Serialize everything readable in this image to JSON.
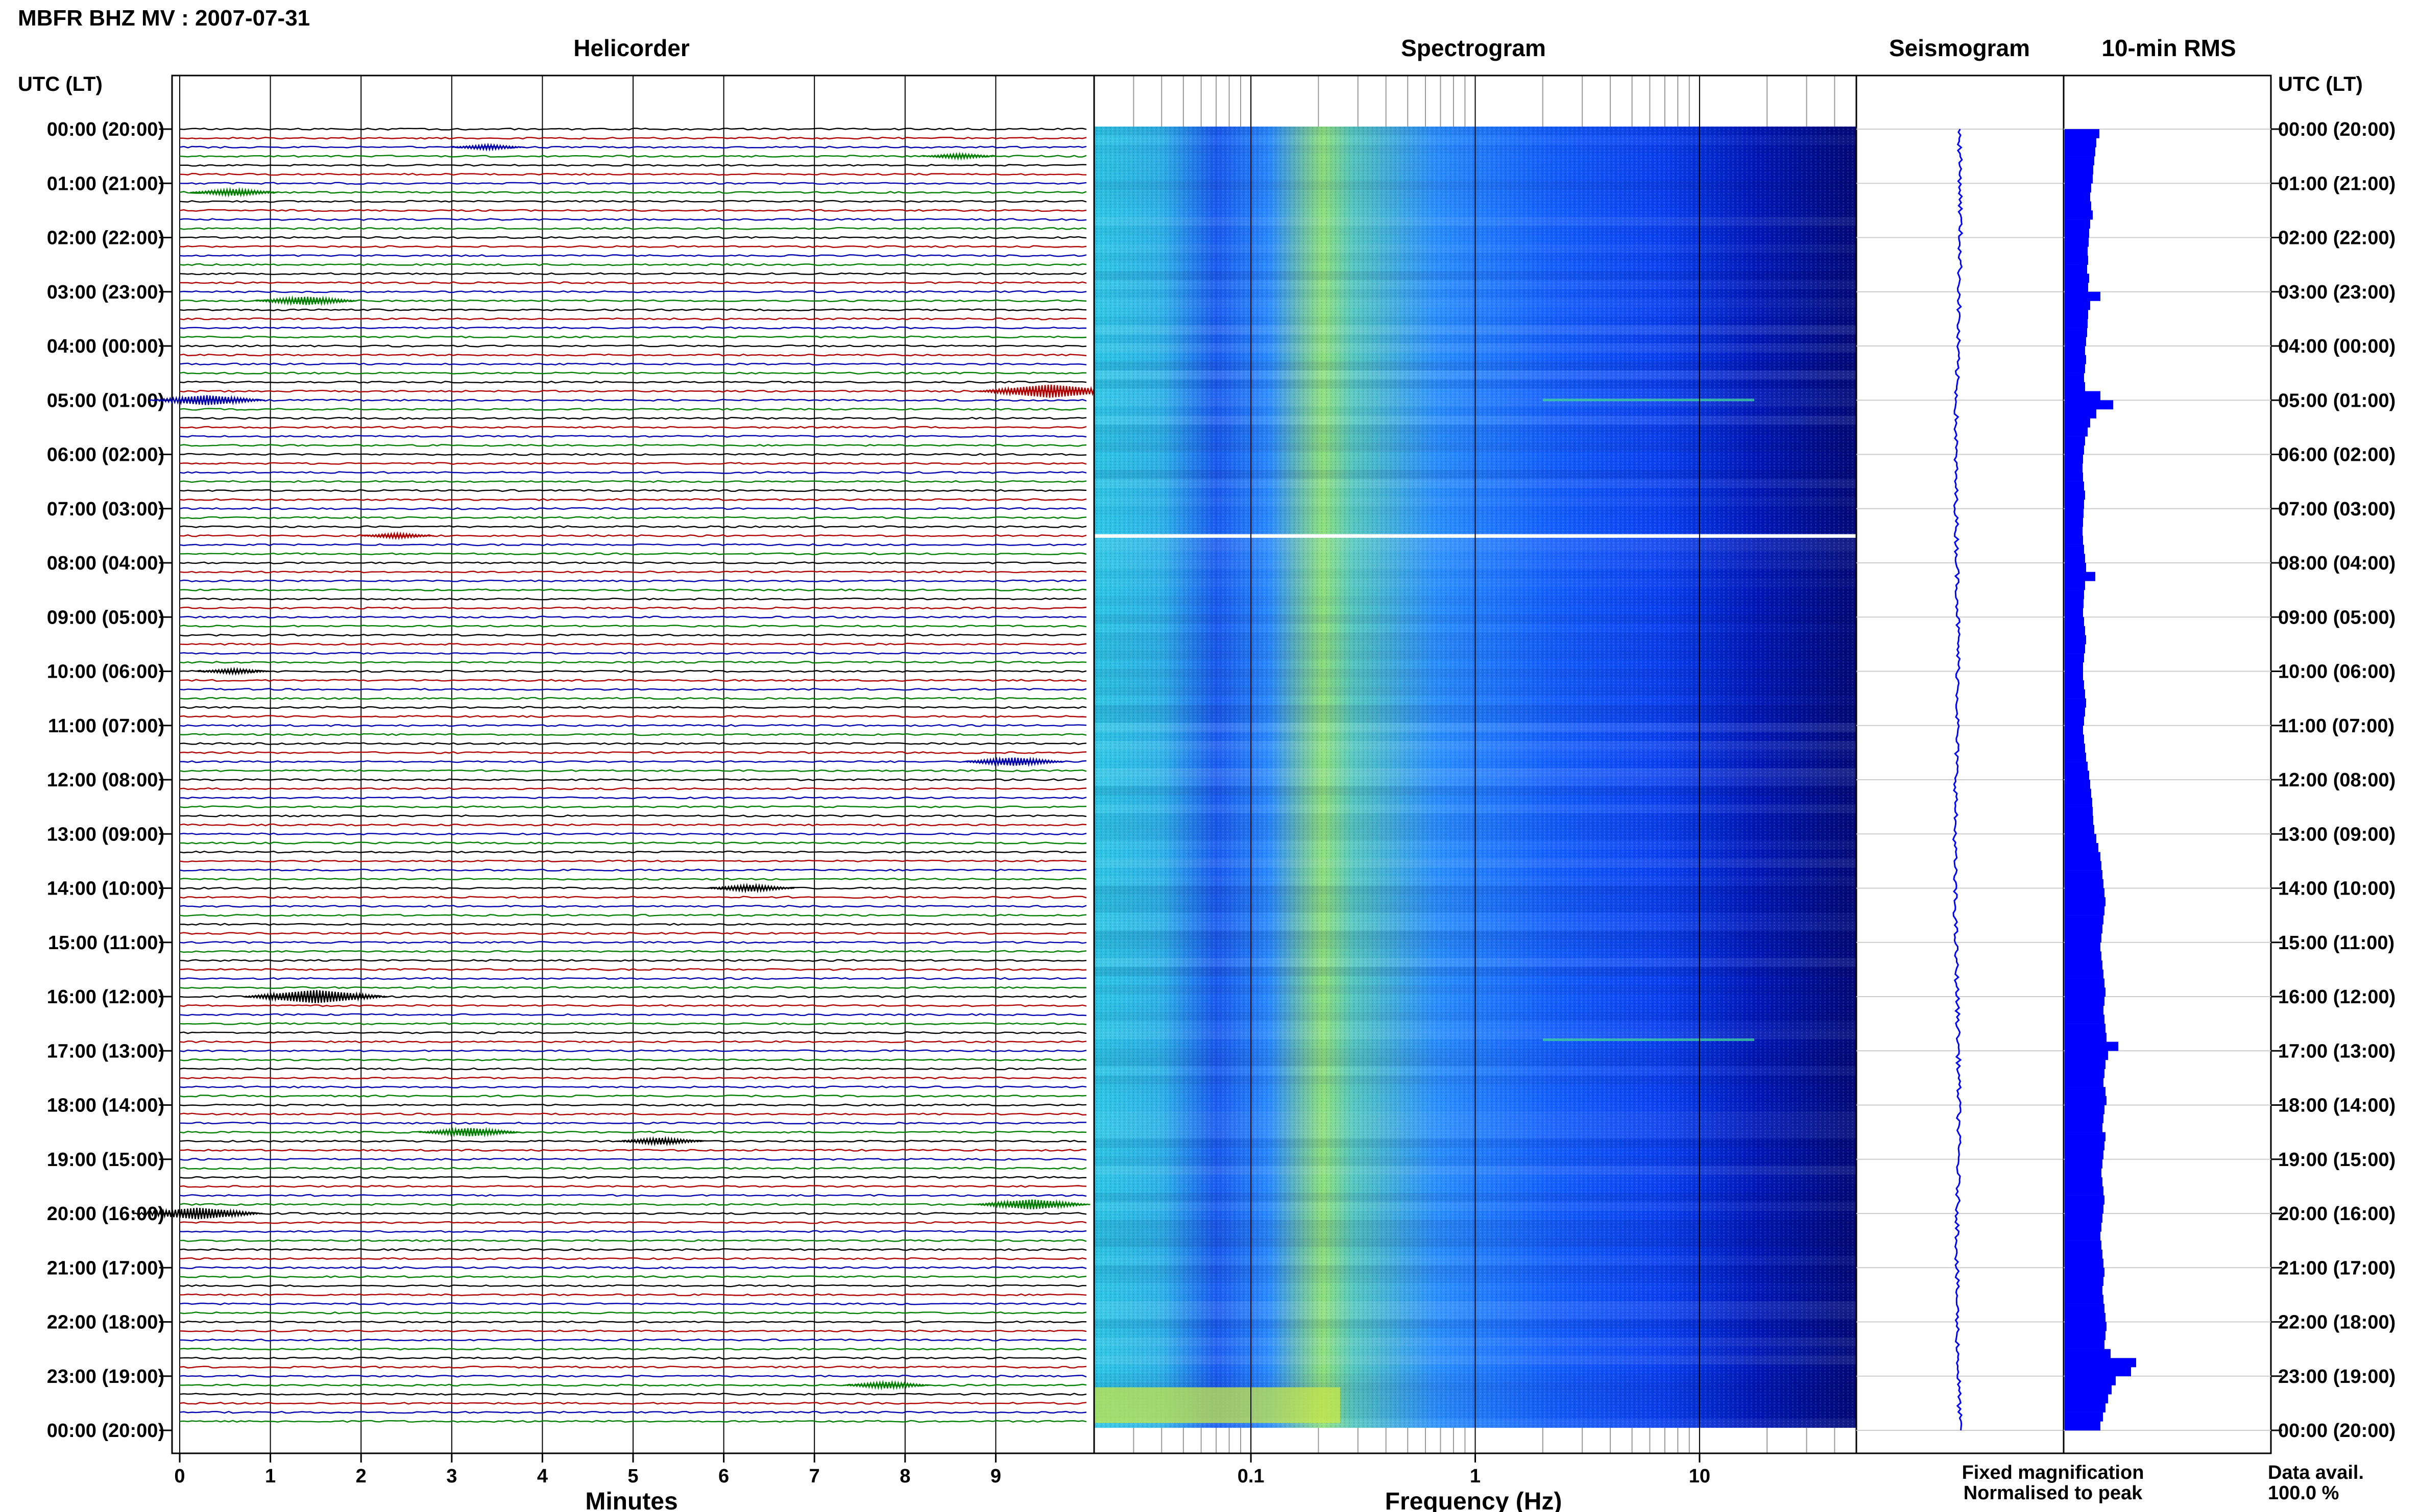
{
  "header": {
    "title": "MBFR BHZ MV : 2007-07-31"
  },
  "panels": {
    "helicorder": {
      "title": "Helicorder",
      "xlabel": "Minutes"
    },
    "spectrogram": {
      "title": "Spectrogram",
      "xlabel": "Frequency (Hz)"
    },
    "seismogram": {
      "title": "Seismogram"
    },
    "rms": {
      "title": "10-min RMS"
    }
  },
  "time_axis": {
    "label": "UTC (LT)",
    "ticks": [
      "00:00 (20:00)",
      "01:00 (21:00)",
      "02:00 (22:00)",
      "03:00 (23:00)",
      "04:00 (00:00)",
      "05:00 (01:00)",
      "06:00 (02:00)",
      "07:00 (03:00)",
      "08:00 (04:00)",
      "09:00 (05:00)",
      "10:00 (06:00)",
      "11:00 (07:00)",
      "12:00 (08:00)",
      "13:00 (09:00)",
      "14:00 (10:00)",
      "15:00 (11:00)",
      "16:00 (12:00)",
      "17:00 (13:00)",
      "18:00 (14:00)",
      "19:00 (15:00)",
      "20:00 (16:00)",
      "21:00 (17:00)",
      "22:00 (18:00)",
      "23:00 (19:00)",
      "00:00 (20:00)"
    ]
  },
  "legend": {
    "fixed": "Fixed magnification",
    "normalised": "Normalised to peak",
    "fixed_color": "#0000ff",
    "normalised_color": "#ff0000"
  },
  "availability": {
    "label": "Data avail.",
    "value": "100.0 %"
  },
  "chart_data": [
    {
      "type": "line",
      "name": "helicorder",
      "x_ticks": [
        "0",
        "1",
        "2",
        "3",
        "4",
        "5",
        "6",
        "7",
        "8",
        "9"
      ],
      "xlim": [
        0,
        10
      ],
      "rows_per_hour": 6,
      "trace_colors": [
        "#000000",
        "#b00000",
        "#0000b0",
        "#008000"
      ],
      "events": [
        {
          "row": 2,
          "minute": 3.4,
          "amp": 3
        },
        {
          "row": 3,
          "minute": 8.6,
          "amp": 3
        },
        {
          "row": 7,
          "minute": 0.6,
          "amp": 4
        },
        {
          "row": 19,
          "minute": 1.4,
          "amp": 5
        },
        {
          "row": 29,
          "minute": 9.6,
          "amp": 8
        },
        {
          "row": 30,
          "minute": 0.3,
          "amp": 6
        },
        {
          "row": 45,
          "minute": 2.4,
          "amp": 3
        },
        {
          "row": 60,
          "minute": 0.6,
          "amp": 3
        },
        {
          "row": 70,
          "minute": 9.2,
          "amp": 5
        },
        {
          "row": 84,
          "minute": 6.3,
          "amp": 4
        },
        {
          "row": 96,
          "minute": 1.5,
          "amp": 8
        },
        {
          "row": 111,
          "minute": 3.2,
          "amp": 5
        },
        {
          "row": 112,
          "minute": 5.3,
          "amp": 4
        },
        {
          "row": 120,
          "minute": 0.2,
          "amp": 7
        },
        {
          "row": 119,
          "minute": 9.4,
          "amp": 6
        },
        {
          "row": 139,
          "minute": 7.8,
          "amp": 4
        }
      ]
    },
    {
      "type": "heatmap",
      "name": "spectrogram",
      "x_ticks": [
        "0.1",
        "1",
        "10"
      ],
      "xscale": "log",
      "xlim": [
        0.02,
        50
      ],
      "colormap": [
        "#00007a",
        "#0000ff",
        "#1e8cff",
        "#29d9e0",
        "#7ef07a",
        "#f0f046"
      ],
      "features": [
        {
          "hour": 7.5,
          "kind": "gap"
        },
        {
          "hour": 5.0,
          "kind": "line",
          "freq": 2
        },
        {
          "hour": 16.8,
          "kind": "line",
          "freq": 2
        },
        {
          "hour": 23.3,
          "kind": "burst"
        }
      ]
    },
    {
      "type": "line",
      "name": "seismogram",
      "color": "#0000ff"
    },
    {
      "type": "bar",
      "name": "rms",
      "color": "#0000ff",
      "orientation": "horizontal",
      "values": [
        0.68,
        0.62,
        0.6,
        0.58,
        0.56,
        0.55,
        0.52,
        0.5,
        0.52,
        0.55,
        0.5,
        0.48,
        0.47,
        0.45,
        0.46,
        0.44,
        0.48,
        0.46,
        0.7,
        0.5,
        0.46,
        0.45,
        0.44,
        0.42,
        0.4,
        0.42,
        0.4,
        0.38,
        0.4,
        0.7,
        0.95,
        0.62,
        0.5,
        0.45,
        0.4,
        0.38,
        0.36,
        0.35,
        0.36,
        0.38,
        0.4,
        0.38,
        0.37,
        0.36,
        0.35,
        0.36,
        0.38,
        0.4,
        0.42,
        0.6,
        0.4,
        0.38,
        0.37,
        0.36,
        0.38,
        0.4,
        0.42,
        0.4,
        0.38,
        0.36,
        0.36,
        0.38,
        0.4,
        0.42,
        0.4,
        0.38,
        0.36,
        0.38,
        0.4,
        0.42,
        0.45,
        0.48,
        0.5,
        0.52,
        0.54,
        0.55,
        0.56,
        0.58,
        0.62,
        0.66,
        0.7,
        0.72,
        0.74,
        0.76,
        0.78,
        0.8,
        0.78,
        0.76,
        0.74,
        0.72,
        0.7,
        0.72,
        0.74,
        0.76,
        0.78,
        0.8,
        0.78,
        0.76,
        0.78,
        0.8,
        0.82,
        1.05,
        0.85,
        0.8,
        0.78,
        0.76,
        0.8,
        0.82,
        0.78,
        0.76,
        0.74,
        0.8,
        0.78,
        0.76,
        0.74,
        0.72,
        0.74,
        0.76,
        0.78,
        0.76,
        0.74,
        0.72,
        0.7,
        0.72,
        0.74,
        0.76,
        0.78,
        0.76,
        0.74,
        0.76,
        0.78,
        0.8,
        0.82,
        0.8,
        0.78,
        0.9,
        1.4,
        1.3,
        1.0,
        0.92,
        0.85,
        0.8,
        0.75,
        0.7
      ]
    }
  ]
}
